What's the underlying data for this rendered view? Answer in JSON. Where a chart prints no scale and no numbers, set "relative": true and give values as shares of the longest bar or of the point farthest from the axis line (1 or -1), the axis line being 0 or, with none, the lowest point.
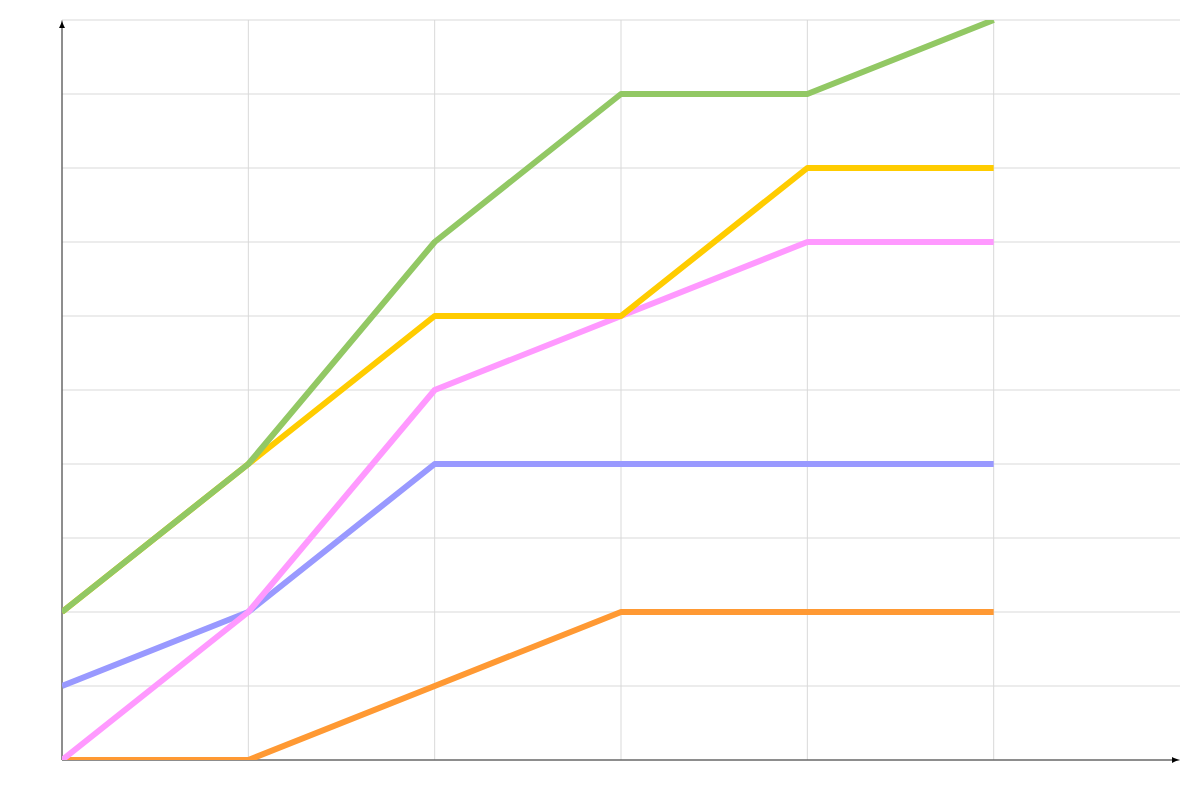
{
  "chart_data": {
    "type": "line",
    "relative": true,
    "grid": true,
    "categories": [
      null,
      null,
      null,
      null,
      null,
      null
    ],
    "series": [
      {
        "color": "#ff9933",
        "values": [
          0,
          0,
          0.1,
          0.2,
          0.2,
          0.2
        ]
      },
      {
        "color": "#9999ff",
        "values": [
          0.1,
          0.2,
          0.4,
          0.4,
          0.4,
          0.4
        ]
      },
      {
        "color": "#ff99ff",
        "values": [
          0,
          0.2,
          0.5,
          0.6,
          0.7,
          0.7
        ]
      },
      {
        "color": "#ffcc00",
        "values": [
          0.2,
          0.4,
          0.6,
          0.6,
          0.8,
          0.8
        ]
      },
      {
        "color": "#92c864",
        "values": [
          0.2,
          0.4,
          0.7,
          0.9,
          0.9,
          1.0
        ]
      }
    ]
  }
}
